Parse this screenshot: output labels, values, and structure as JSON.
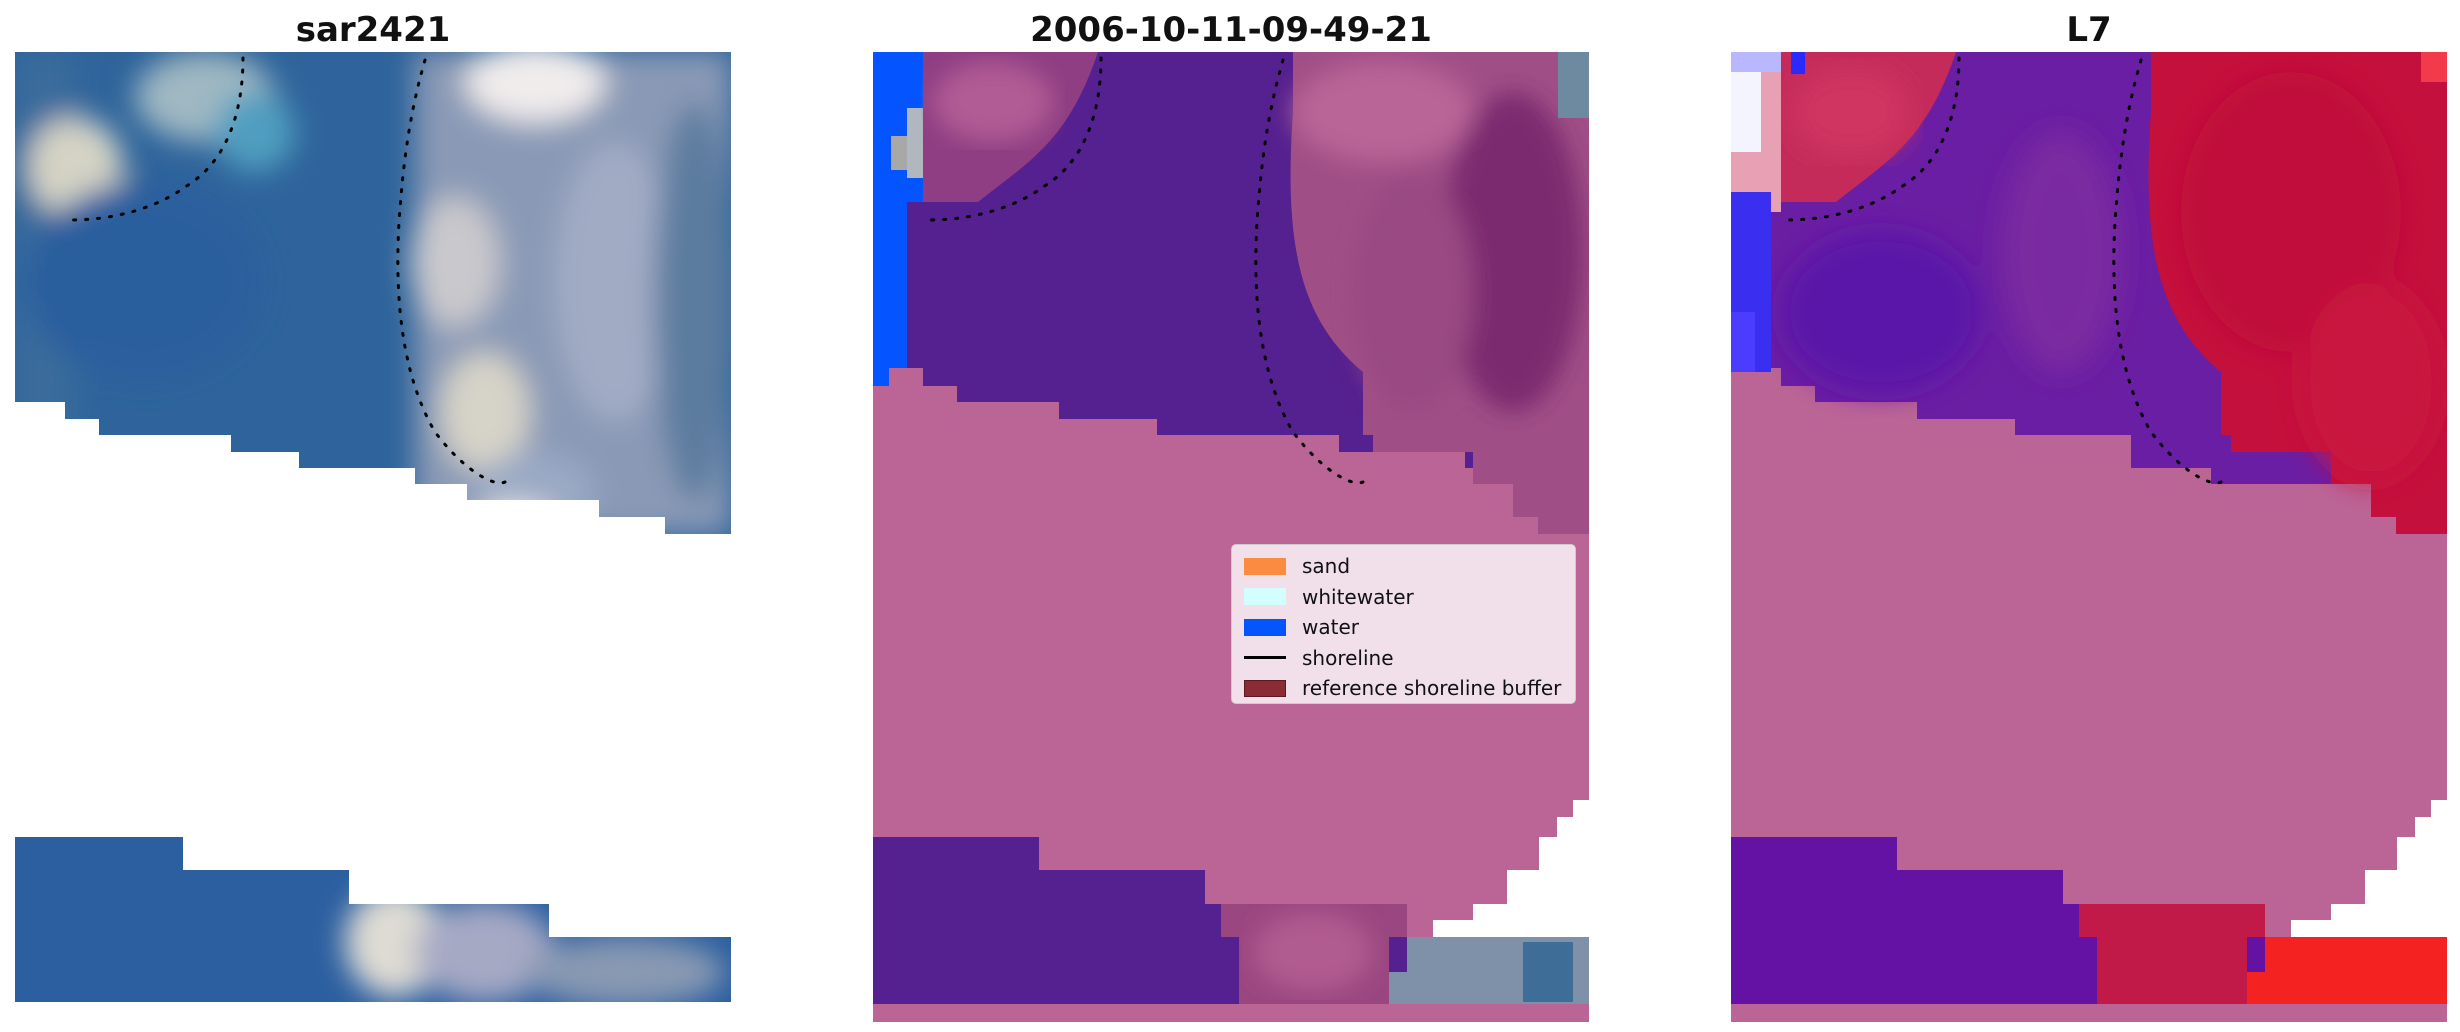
{
  "panels": [
    {
      "title": "sar2421"
    },
    {
      "title": "2006-10-11-09-49-21"
    },
    {
      "title": "L7"
    }
  ],
  "legend": {
    "items": [
      {
        "label": "sand",
        "color": "#fb8b40",
        "kind": "patch"
      },
      {
        "label": "whitewater",
        "color": "#d3fefe",
        "kind": "patch"
      },
      {
        "label": "water",
        "color": "#0455ff",
        "kind": "patch"
      },
      {
        "label": "shoreline",
        "color": "#000000",
        "kind": "line"
      },
      {
        "label": "reference shoreline buffer",
        "color": "#8b2c35",
        "kind": "patch"
      }
    ]
  },
  "colors": {
    "mask_pink": "#bb6596",
    "water_purple": "#55208f",
    "rgb_blue": "#2e649b",
    "index_red": "#c4103c",
    "water_class_blue": "#0455ff"
  }
}
